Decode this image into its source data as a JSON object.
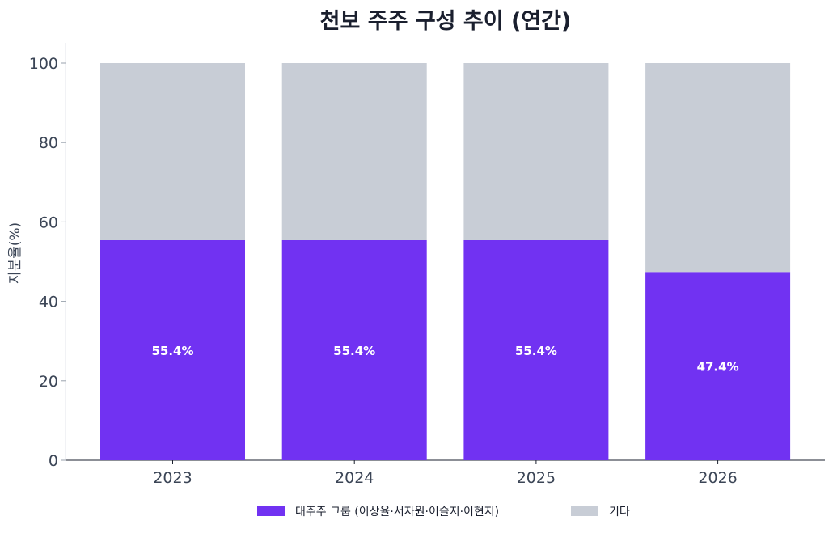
{
  "chart_data": {
    "type": "bar",
    "stacked": true,
    "title": "천보 주주 구성 추이 (연간)",
    "xlabel": "",
    "ylabel": "지분율(%)",
    "ylim": [
      0,
      100
    ],
    "yticks": [
      0,
      20,
      40,
      60,
      80,
      100
    ],
    "categories": [
      "2023",
      "2024",
      "2025",
      "2026"
    ],
    "series": [
      {
        "name": "대주주 그룹 (이상율·서자원·이슬지·이현지)",
        "color": "#7132f2",
        "values": [
          55.4,
          55.4,
          55.4,
          47.4
        ]
      },
      {
        "name": "기타",
        "color": "#c8cdd6",
        "values": [
          44.6,
          44.6,
          44.6,
          52.6
        ]
      }
    ],
    "data_labels": [
      "55.4%",
      "55.4%",
      "55.4%",
      "47.4%"
    ],
    "legend_position": "bottom",
    "grid": false
  }
}
